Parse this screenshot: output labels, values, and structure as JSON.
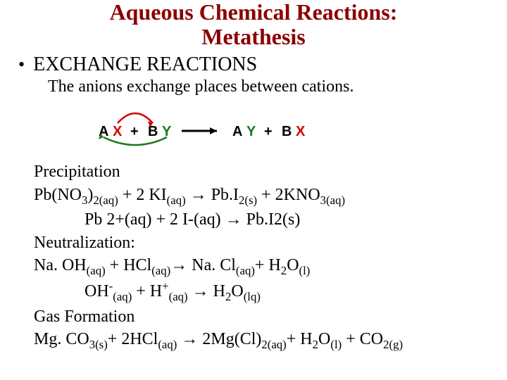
{
  "title_color": "#8b0000",
  "title_line1": "Aqueous Chemical Reactions:",
  "title_line2": "Metathesis",
  "bullet": "EXCHANGE REACTIONS",
  "subline": "The anions exchange places between cations.",
  "diagram": {
    "A": "A",
    "X1": "X",
    "plus1": "+",
    "B": "B",
    "Y1": "Y",
    "arrow": "→",
    "A2": "A",
    "Y2": "Y",
    "plus2": "+",
    "B2": "B",
    "X2": "X",
    "letter_color": "#000000",
    "X_color": "#d40000",
    "Y_color": "#1a7a1a",
    "arc_red": "#d40000",
    "arc_green": "#1a7a1a",
    "font_family": "Arial, Helvetica, sans-serif",
    "font_weight": "bold",
    "font_size": 20
  },
  "sec1": "Precipitation",
  "eq1": {
    "a": "Pb(NO",
    "a_sub": "3",
    "b": ")",
    "b_sub": "2(aq)",
    "plus": " + 2 KI",
    "ki_sub": "(aq)",
    "arr": " → ",
    "c": " Pb.I",
    "c_sub": "2(s)",
    "plus2": " + 2KNO",
    "d_sub": "3(aq)"
  },
  "eq1b": {
    "a": "Pb 2+(aq)  +  2 I-(aq)   →  Pb.I2(s)"
  },
  "sec2": "Neutralization:",
  "eq2": {
    "a": "Na. OH",
    "a_sub": "(aq)",
    "plus": " + HCl",
    "b_sub": "(aq)",
    "arr": "→ ",
    "c": "Na. Cl",
    "c_sub": "(aq)",
    "plus2": "+ H",
    "h_sub": "2",
    "o": "O",
    "o_sub": "(l)"
  },
  "eq2b": {
    "a": "OH",
    "a_sup": "-",
    "a_sub": "(aq)",
    "plus": "  +  H",
    "b_sup": "+",
    "b_sub": "(aq)",
    "arr": "      → ",
    "c": " H",
    "c_sub": "2",
    "o": "O",
    "o_sub": "(lq)"
  },
  "sec3": "Gas Formation",
  "eq3": {
    "a": "Mg. CO",
    "a_sub": "3(s)",
    "plus": "+ 2HCl",
    "b_sub": "(aq)",
    "arr": " → ",
    "c": "2Mg(Cl)",
    "c_sub": "2(aq)",
    "plus2": "+ H",
    "h_sub": "2",
    "o": "O",
    "o_sub": "(l)",
    "plus3": " + CO",
    "co_sub": "2(g)"
  }
}
